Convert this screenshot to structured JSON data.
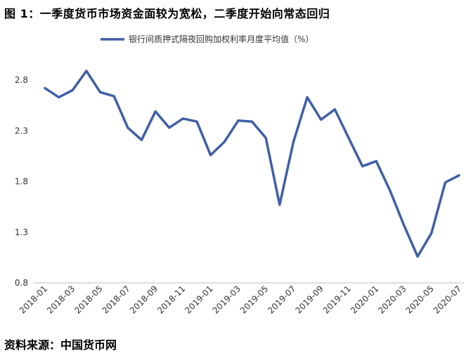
{
  "figure": {
    "title": "图 1：一季度货币市场资金面较为宽松，二季度开始向常态回归",
    "source": "资料来源：中国货币网"
  },
  "chart_data": {
    "type": "line",
    "title": "",
    "xlabel": "",
    "ylabel": "",
    "x": [
      "2018-01",
      "2018-02",
      "2018-03",
      "2018-04",
      "2018-05",
      "2018-06",
      "2018-07",
      "2018-08",
      "2018-09",
      "2018-10",
      "2018-11",
      "2018-12",
      "2019-01",
      "2019-02",
      "2019-03",
      "2019-04",
      "2019-05",
      "2019-06",
      "2019-07",
      "2019-08",
      "2019-09",
      "2019-10",
      "2019-11",
      "2019-12",
      "2020-01",
      "2020-02",
      "2020-03",
      "2020-04",
      "2020-05",
      "2020-06",
      "2020-07"
    ],
    "x_tick_labels": [
      "2018-01",
      "2018-03",
      "2018-05",
      "2018-07",
      "2018-09",
      "2018-11",
      "2019-01",
      "2019-03",
      "2019-05",
      "2019-07",
      "2019-09",
      "2019-11",
      "2020-01",
      "2020-03",
      "2020-05",
      "2020-07"
    ],
    "y_ticks": [
      "0.8",
      "1.3",
      "1.8",
      "2.3",
      "2.8"
    ],
    "ylim": [
      0.8,
      3.0
    ],
    "grid": false,
    "legend_position": "top-center",
    "series": [
      {
        "name": "银行间质押式隔夜回购加权利率月度平均值（%）",
        "color": "#3f5fa6",
        "values": [
          2.72,
          2.63,
          2.7,
          2.89,
          2.68,
          2.64,
          2.33,
          2.21,
          2.49,
          2.33,
          2.42,
          2.39,
          2.06,
          2.19,
          2.4,
          2.39,
          2.23,
          1.57,
          2.19,
          2.63,
          2.41,
          2.51,
          2.23,
          1.95,
          2.0,
          1.71,
          1.37,
          1.06,
          1.29,
          1.79,
          1.86
        ]
      }
    ]
  }
}
